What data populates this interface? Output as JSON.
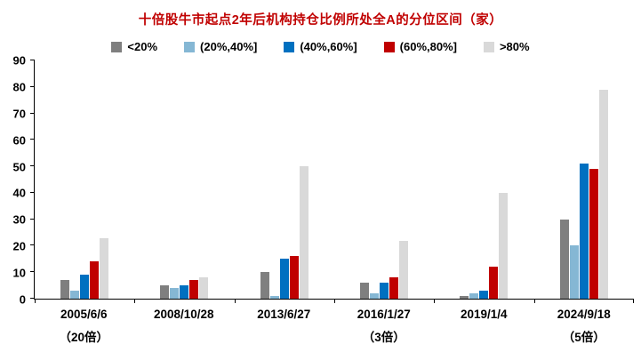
{
  "chart_data": {
    "type": "bar",
    "title": "十倍股牛市起点2年后机构持仓比例所处全A的分位区间（家）",
    "title_color": "#c00000",
    "categories": [
      {
        "label": "2005/6/6",
        "sub": "（20倍）"
      },
      {
        "label": "2008/10/28",
        "sub": ""
      },
      {
        "label": "2013/6/27",
        "sub": ""
      },
      {
        "label": "2016/1/27",
        "sub": "（3倍）"
      },
      {
        "label": "2019/1/4",
        "sub": ""
      },
      {
        "label": "2024/9/18",
        "sub": "（5倍）"
      }
    ],
    "series": [
      {
        "name": "<20%",
        "color": "#7f7f7f",
        "values": [
          7,
          5,
          10,
          6,
          1,
          30
        ]
      },
      {
        "name": "(20%,40%]",
        "color": "#85b7d4",
        "values": [
          3,
          4,
          1,
          2,
          2,
          20
        ]
      },
      {
        "name": "(40%,60%]",
        "color": "#0070c0",
        "values": [
          9,
          5,
          15,
          6,
          3,
          51
        ]
      },
      {
        "name": "(60%,80%]",
        "color": "#c00000",
        "values": [
          14,
          7,
          16,
          8,
          12,
          49
        ]
      },
      {
        "name": ">80%",
        "color": "#d9d9d9",
        "values": [
          23,
          8,
          50,
          22,
          40,
          79
        ]
      }
    ],
    "ylim": [
      0,
      90
    ],
    "yticks": [
      0,
      10,
      20,
      30,
      40,
      50,
      60,
      70,
      80,
      90
    ],
    "grid": false,
    "legend_position": "top"
  }
}
